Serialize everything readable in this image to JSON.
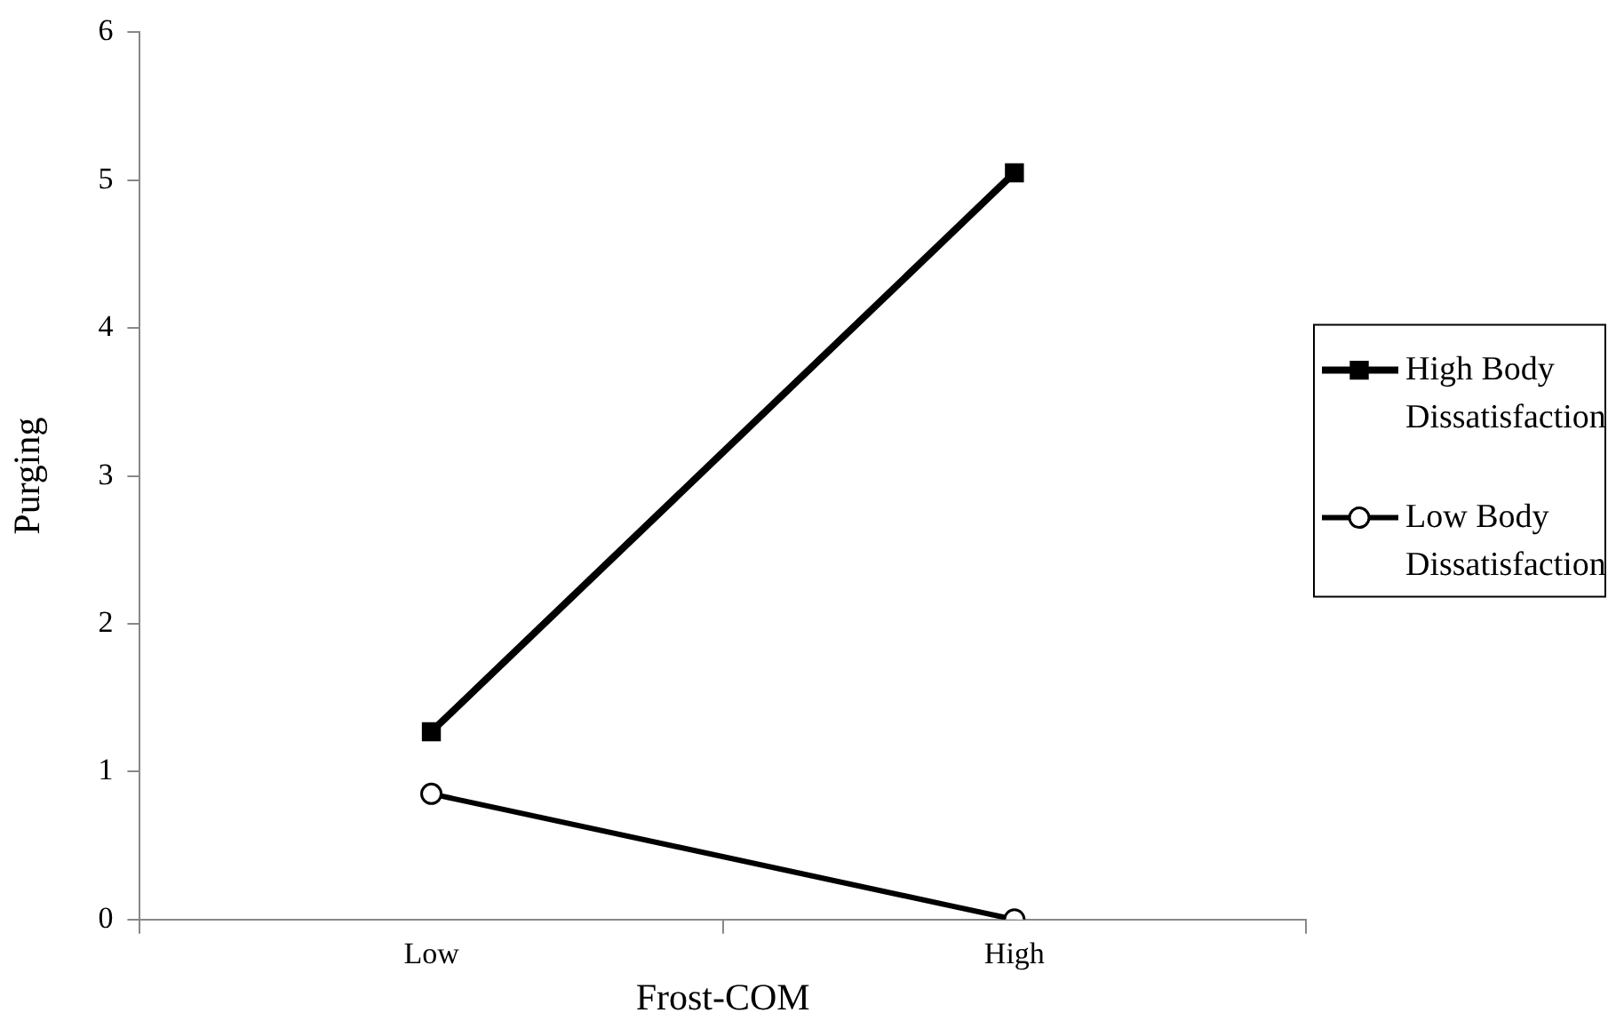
{
  "chart_data": {
    "type": "line",
    "xlabel": "Frost-COM",
    "ylabel": "Purging",
    "categories": [
      "Low",
      "High"
    ],
    "series": [
      {
        "name": "High Body Dissatisfaction",
        "color": "#000000",
        "marker": "square",
        "values": [
          1.27,
          5.05
        ]
      },
      {
        "name": "Low Body Dissatisfaction",
        "color": "#000000",
        "marker": "circle",
        "values": [
          0.85,
          0.0
        ]
      }
    ],
    "ylim": [
      0,
      6
    ],
    "yticks": [
      0,
      1,
      2,
      3,
      4,
      5,
      6
    ],
    "grid": false,
    "legend": "right",
    "line_style": "solid"
  }
}
